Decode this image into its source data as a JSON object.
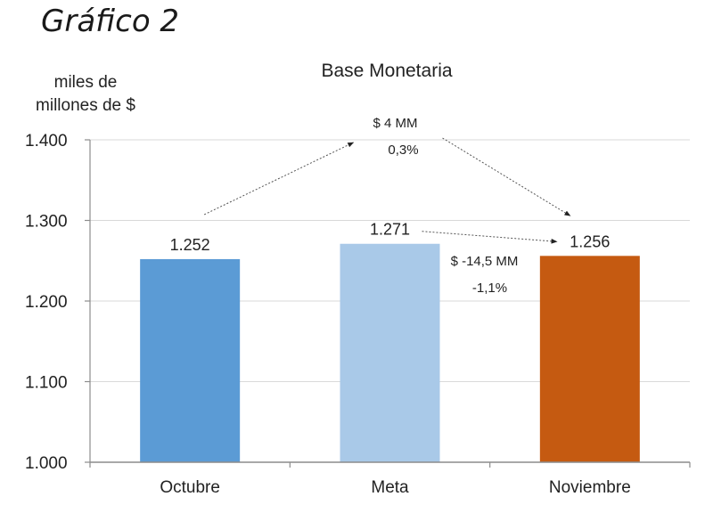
{
  "heading": "Gráfico 2",
  "chart_data": {
    "type": "bar",
    "title": "Base Monetaria",
    "ylabel_lines": [
      "miles de",
      "millones de $"
    ],
    "categories": [
      "Octubre",
      "Meta",
      "Noviembre"
    ],
    "values": [
      1252,
      1271,
      1256
    ],
    "value_labels": [
      "1.252",
      "1.271",
      "1.256"
    ],
    "ylim": [
      1000,
      1400
    ],
    "yticks": [
      1000,
      1100,
      1200,
      1300,
      1400
    ],
    "ytick_labels": [
      "1.000",
      "1.100",
      "1.200",
      "1.300",
      "1.400"
    ],
    "bar_colors": [
      "#5b9bd5",
      "#a9c9e8",
      "#c55a11"
    ],
    "grid": true,
    "annotations": [
      {
        "from": "Octubre",
        "to": "Noviembre",
        "lines": [
          "$ 4 MM",
          "0,3%"
        ]
      },
      {
        "from": "Meta",
        "to": "Noviembre",
        "lines": [
          "$ -14,5 MM",
          "-1,1%"
        ]
      }
    ]
  }
}
